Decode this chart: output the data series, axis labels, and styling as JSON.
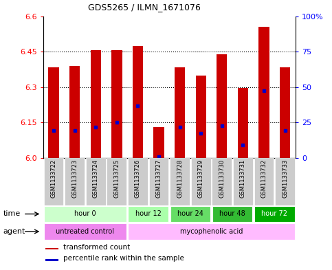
{
  "title": "GDS5265 / ILMN_1671076",
  "samples": [
    "GSM1133722",
    "GSM1133723",
    "GSM1133724",
    "GSM1133725",
    "GSM1133726",
    "GSM1133727",
    "GSM1133728",
    "GSM1133729",
    "GSM1133730",
    "GSM1133731",
    "GSM1133732",
    "GSM1133733"
  ],
  "bar_tops": [
    6.385,
    6.39,
    6.455,
    6.455,
    6.475,
    6.13,
    6.385,
    6.35,
    6.44,
    6.295,
    6.555,
    6.385
  ],
  "bar_bottom": 6.0,
  "blue_values": [
    6.115,
    6.115,
    6.13,
    6.15,
    6.22,
    6.005,
    6.13,
    6.105,
    6.135,
    6.055,
    6.285,
    6.115
  ],
  "ylim": [
    6.0,
    6.6
  ],
  "yticks_left": [
    6.0,
    6.15,
    6.3,
    6.45,
    6.6
  ],
  "yticks_right": [
    0,
    25,
    50,
    75,
    100
  ],
  "bar_color": "#cc0000",
  "blue_color": "#0000cc",
  "time_groups": [
    {
      "label": "hour 0",
      "start": 0,
      "end": 4,
      "color": "#ccffcc",
      "text_color": "black"
    },
    {
      "label": "hour 12",
      "start": 4,
      "end": 6,
      "color": "#aaffaa",
      "text_color": "black"
    },
    {
      "label": "hour 24",
      "start": 6,
      "end": 8,
      "color": "#66dd66",
      "text_color": "black"
    },
    {
      "label": "hour 48",
      "start": 8,
      "end": 10,
      "color": "#33bb33",
      "text_color": "black"
    },
    {
      "label": "hour 72",
      "start": 10,
      "end": 12,
      "color": "#00aa00",
      "text_color": "white"
    }
  ],
  "agent_groups": [
    {
      "label": "untreated control",
      "start": 0,
      "end": 4,
      "color": "#ee88ee"
    },
    {
      "label": "mycophenolic acid",
      "start": 4,
      "end": 12,
      "color": "#ffbbff"
    }
  ],
  "sample_bg": "#cccccc",
  "bar_width": 0.5
}
